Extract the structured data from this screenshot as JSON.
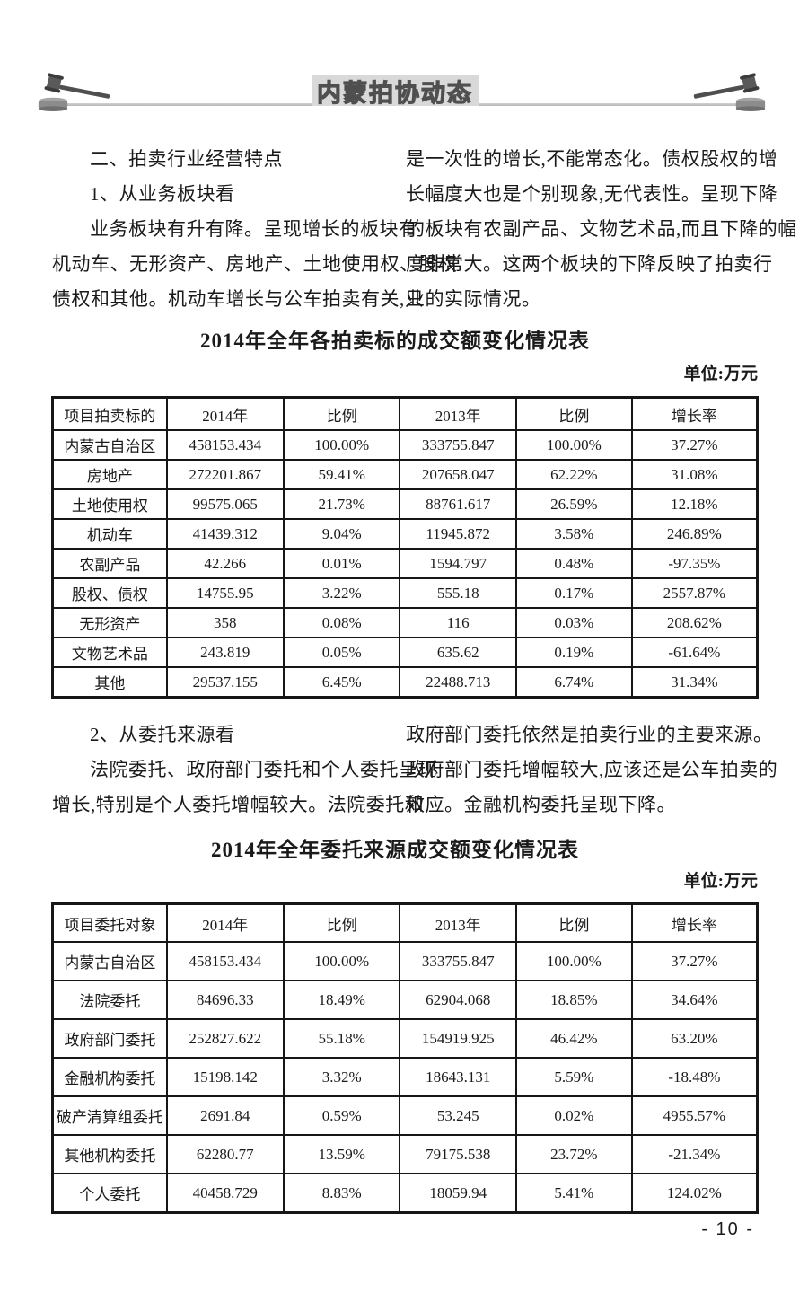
{
  "header": {
    "title": "内蒙拍协动态"
  },
  "section1": {
    "left_lines": [
      {
        "t": "二、拍卖行业经营特点",
        "ind": true
      },
      {
        "t": "1、从业务板块看",
        "ind": true
      },
      {
        "t": "业务板块有升有降。呈现增长的板块有",
        "ind": true
      },
      {
        "t": "机动车、无形资产、房地产、土地使用权、股权",
        "ind": false
      },
      {
        "t": "债权和其他。机动车增长与公车拍卖有关,只",
        "ind": false
      }
    ],
    "right_lines": [
      {
        "t": "是一次性的增长,不能常态化。债权股权的增",
        "ind": false
      },
      {
        "t": "长幅度大也是个别现象,无代表性。呈现下降",
        "ind": false
      },
      {
        "t": "的板块有农副产品、文物艺术品,而且下降的幅",
        "ind": false
      },
      {
        "t": "度非常大。这两个板块的下降反映了拍卖行",
        "ind": false
      },
      {
        "t": "业的实际情况。",
        "ind": false
      }
    ]
  },
  "table1": {
    "title": "2014年全年各拍卖标的成交额变化情况表",
    "unit": "单位:万元",
    "headers": [
      "项目拍卖标的",
      "2014年",
      "比例",
      "2013年",
      "比例",
      "增长率"
    ],
    "rows": [
      [
        "内蒙古自治区",
        "458153.434",
        "100.00%",
        "333755.847",
        "100.00%",
        "37.27%"
      ],
      [
        "房地产",
        "272201.867",
        "59.41%",
        "207658.047",
        "62.22%",
        "31.08%"
      ],
      [
        "土地使用权",
        "99575.065",
        "21.73%",
        "88761.617",
        "26.59%",
        "12.18%"
      ],
      [
        "机动车",
        "41439.312",
        "9.04%",
        "11945.872",
        "3.58%",
        "246.89%"
      ],
      [
        "农副产品",
        "42.266",
        "0.01%",
        "1594.797",
        "0.48%",
        "-97.35%"
      ],
      [
        "股权、债权",
        "14755.95",
        "3.22%",
        "555.18",
        "0.17%",
        "2557.87%"
      ],
      [
        "无形资产",
        "358",
        "0.08%",
        "116",
        "0.03%",
        "208.62%"
      ],
      [
        "文物艺术品",
        "243.819",
        "0.05%",
        "635.62",
        "0.19%",
        "-61.64%"
      ],
      [
        "其他",
        "29537.155",
        "6.45%",
        "22488.713",
        "6.74%",
        "31.34%"
      ]
    ]
  },
  "section2": {
    "left_lines": [
      {
        "t": "2、从委托来源看",
        "ind": true
      },
      {
        "t": "法院委托、政府部门委托和个人委托呈现",
        "ind": true
      },
      {
        "t": "增长,特别是个人委托增幅较大。法院委托和",
        "ind": false
      }
    ],
    "right_lines": [
      {
        "t": "政府部门委托依然是拍卖行业的主要来源。",
        "ind": false
      },
      {
        "t": "政府部门委托增幅较大,应该还是公车拍卖的",
        "ind": false
      },
      {
        "t": "效应。金融机构委托呈现下降。",
        "ind": false
      }
    ]
  },
  "table2": {
    "title": "2014年全年委托来源成交额变化情况表",
    "unit": "单位:万元",
    "headers": [
      "项目委托对象",
      "2014年",
      "比例",
      "2013年",
      "比例",
      "增长率"
    ],
    "rows": [
      [
        "内蒙古自治区",
        "458153.434",
        "100.00%",
        "333755.847",
        "100.00%",
        "37.27%"
      ],
      [
        "法院委托",
        "84696.33",
        "18.49%",
        "62904.068",
        "18.85%",
        "34.64%"
      ],
      [
        "政府部门委托",
        "252827.622",
        "55.18%",
        "154919.925",
        "46.42%",
        "63.20%"
      ],
      [
        "金融机构委托",
        "15198.142",
        "3.32%",
        "18643.131",
        "5.59%",
        "-18.48%"
      ],
      [
        "破产清算组委托",
        "2691.84",
        "0.59%",
        "53.245",
        "0.02%",
        "4955.57%"
      ],
      [
        "其他机构委托",
        "62280.77",
        "13.59%",
        "79175.538",
        "23.72%",
        "-21.34%"
      ],
      [
        "个人委托",
        "40458.729",
        "8.83%",
        "18059.94",
        "5.41%",
        "124.02%"
      ]
    ]
  },
  "footer": {
    "page_number": "- 10 -"
  },
  "colors": {
    "title_box_bg": "#d9d9d9",
    "rule_line": "#bdbdbd",
    "text": "#1a1a1a",
    "table_border": "#161616"
  }
}
